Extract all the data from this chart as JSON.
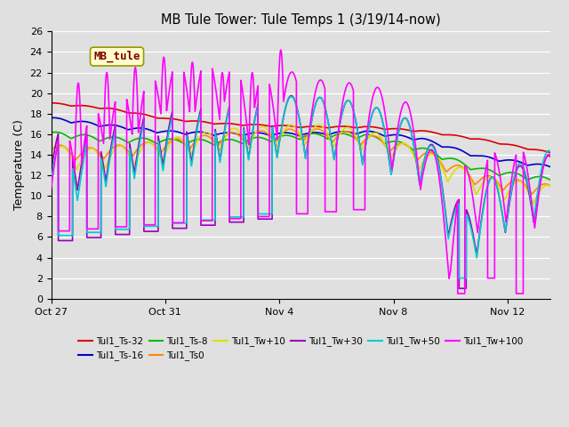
{
  "title": "MB Tule Tower: Tule Temps 1 (3/19/14-now)",
  "ylabel": "Temperature (C)",
  "ylim": [
    0,
    26
  ],
  "yticks": [
    0,
    2,
    4,
    6,
    8,
    10,
    12,
    14,
    16,
    18,
    20,
    22,
    24,
    26
  ],
  "bg_color": "#e0e0e0",
  "grid_color": "#ffffff",
  "annotation": {
    "text": "MB_tule",
    "text_color": "#800000",
    "bg_color": "#ffffcc",
    "edge_color": "#999900"
  },
  "series": [
    {
      "label": "Tul1_Ts-32",
      "color": "#dd0000"
    },
    {
      "label": "Tul1_Ts-16",
      "color": "#0000cc"
    },
    {
      "label": "Tul1_Ts-8",
      "color": "#00bb00"
    },
    {
      "label": "Tul1_Ts0",
      "color": "#ff8800"
    },
    {
      "label": "Tul1_Tw+10",
      "color": "#dddd00"
    },
    {
      "label": "Tul1_Tw+30",
      "color": "#9900bb"
    },
    {
      "label": "Tul1_Tw+50",
      "color": "#00cccc"
    },
    {
      "label": "Tul1_Tw+100",
      "color": "#ff00ff"
    }
  ],
  "x_tick_labels": [
    "Oct 27",
    "Oct 31",
    "Nov 4",
    "Nov 8",
    "Nov 12"
  ],
  "x_tick_days": [
    0,
    4,
    8,
    12,
    16
  ],
  "total_days": 17.5
}
